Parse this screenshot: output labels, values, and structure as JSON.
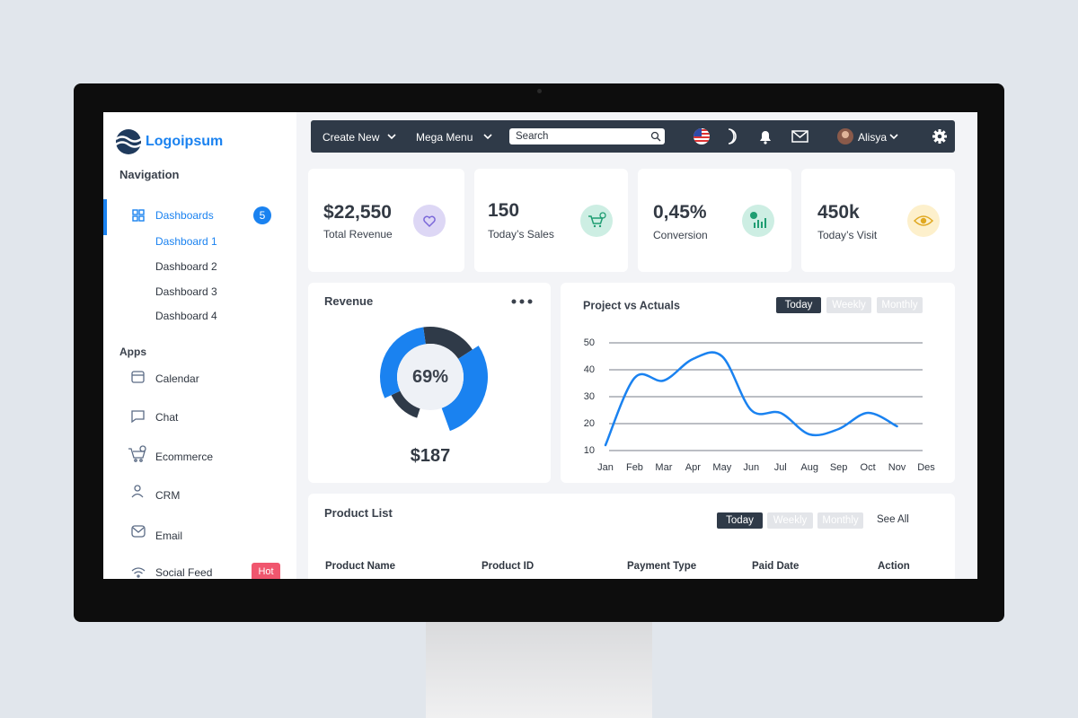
{
  "logo": "Logoipsum",
  "topbar": {
    "create_new": "Create New",
    "mega_menu": "Mega Menu",
    "search": "Search",
    "user": "Alisya"
  },
  "sidebar": {
    "navigation": "Navigation",
    "dashboards": "Dashboards",
    "badge": "5",
    "dashboard_items": [
      "Dashboard 1",
      "Dashboard 2",
      "Dashboard 3",
      "Dashboard 4"
    ],
    "apps_title": "Apps",
    "apps": [
      "Calendar",
      "Chat",
      "Ecommerce",
      "CRM",
      "Email",
      "Social Feed"
    ],
    "hot": "Hot"
  },
  "stats": [
    {
      "value": "$22,550",
      "label": "Total Revenue"
    },
    {
      "value": "150",
      "label": "Today’s Sales"
    },
    {
      "value": "0,45%",
      "label": "Conversion"
    },
    {
      "value": "450k",
      "label": "Today’s Visit"
    }
  ],
  "revenue": {
    "title": "Revenue",
    "percent": "69%",
    "amount": "$187"
  },
  "project_chart": {
    "type": "line",
    "title": "Project vs Actuals",
    "tabs": [
      "Today",
      "Weekly",
      "Monthly"
    ],
    "categories": [
      "Jan",
      "Feb",
      "Mar",
      "Apr",
      "May",
      "Jun",
      "Jul",
      "Aug",
      "Sep",
      "Oct",
      "Nov",
      "Des"
    ],
    "values": [
      12,
      37,
      36,
      44,
      45,
      25,
      24,
      16,
      18,
      24,
      19,
      null
    ],
    "color": "#1a82f0",
    "ylim": [
      10,
      50
    ],
    "yticks": [
      10,
      20,
      30,
      40,
      50
    ],
    "grid": true
  },
  "product_list": {
    "title": "Product List",
    "tabs": [
      "Today",
      "Weekly",
      "Monthly"
    ],
    "see_all": "See All",
    "columns": [
      "Product Name",
      "Product ID",
      "Payment Type",
      "Paid Date",
      "Action"
    ]
  }
}
